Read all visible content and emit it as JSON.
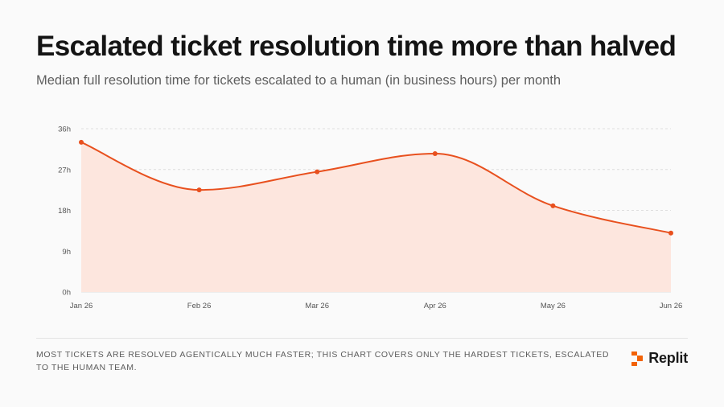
{
  "header": {
    "title": "Escalated ticket resolution time more than halved",
    "subtitle": "Median full resolution time for tickets escalated to a human (in business hours) per month"
  },
  "footer": {
    "note": "MOST TICKETS ARE RESOLVED AGENTICALLY MUCH FASTER; THIS CHART COVERS ONLY THE HARDEST TICKETS, ESCALATED TO THE HUMAN TEAM.",
    "brand": "Replit",
    "brand_icon": "replit-logo-icon"
  },
  "colors": {
    "line": "#e8501e",
    "area": "#fde6de",
    "grid": "#dddddd",
    "brand": "#f26207"
  },
  "chart_data": {
    "type": "area",
    "categories": [
      "Jan 26",
      "Feb 26",
      "Mar 26",
      "Apr 26",
      "May 26",
      "Jun 26"
    ],
    "series": [
      {
        "values": [
          33,
          22.5,
          26.5,
          30.5,
          19,
          13
        ]
      }
    ],
    "y_ticks": [
      "0h",
      "9h",
      "18h",
      "27h",
      "36h"
    ],
    "y_tick_values": [
      0,
      9,
      18,
      27,
      36
    ],
    "ylim": [
      0,
      36
    ],
    "unit": "h",
    "grid": true,
    "smooth": true,
    "markers": true
  }
}
